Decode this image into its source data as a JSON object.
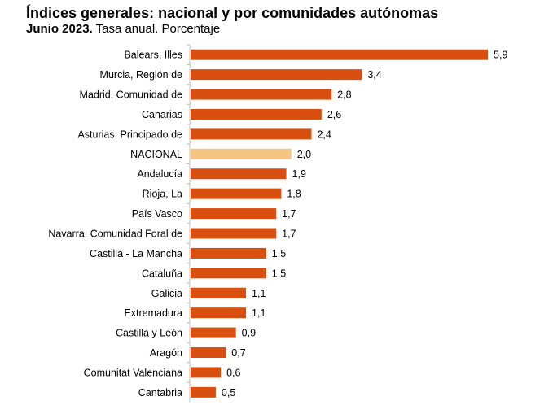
{
  "header": {
    "title": "Índices generales: nacional y por comunidades autónomas",
    "subtitle_bold": "Junio 2023.",
    "subtitle_rest": " Tasa anual. Porcentaje"
  },
  "colors": {
    "bar": "#d94f10",
    "highlight": "#f6c485",
    "axis": "#bfbfbf"
  },
  "chart_data": {
    "type": "bar",
    "orientation": "horizontal",
    "title": "Índices generales: nacional y por comunidades autónomas",
    "subtitle": "Junio 2023. Tasa anual. Porcentaje",
    "categories": [
      "Balears, Illes",
      "Murcia, Región de",
      "Madrid, Comunidad de",
      "Canarias",
      "Asturias, Principado de",
      "NACIONAL",
      "Andalucía",
      "Rioja, La",
      "País Vasco",
      "Navarra, Comunidad Foral de",
      "Castilla - La Mancha",
      "Cataluña",
      "Galicia",
      "Extremadura",
      "Castilla y León",
      "Aragón",
      "Comunitat Valenciana",
      "Cantabria"
    ],
    "values": [
      5.9,
      3.4,
      2.8,
      2.6,
      2.4,
      2.0,
      1.9,
      1.8,
      1.7,
      1.7,
      1.5,
      1.5,
      1.1,
      1.1,
      0.9,
      0.7,
      0.6,
      0.5
    ],
    "value_labels": [
      "5,9",
      "3,4",
      "2,8",
      "2,6",
      "2,4",
      "2,0",
      "1,9",
      "1,8",
      "1,7",
      "1,7",
      "1,5",
      "1,5",
      "1,1",
      "1,1",
      "0,9",
      "0,7",
      "0,6",
      "0,5"
    ],
    "highlight_category": "NACIONAL",
    "xlim": [
      0,
      6.2
    ],
    "grid": false,
    "legend": "none"
  }
}
